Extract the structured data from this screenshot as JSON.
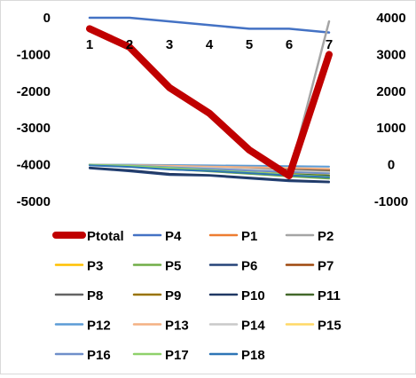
{
  "chart_data": {
    "type": "line",
    "x": [
      "1",
      "2",
      "3",
      "4",
      "5",
      "6",
      "7"
    ],
    "y_left_lim": [
      -5000,
      0
    ],
    "y_left_ticks": [
      "0",
      "-1000",
      "-2000",
      "-3000",
      "-4000",
      "-5000"
    ],
    "y_right_lim": [
      -1000,
      4000
    ],
    "y_right_ticks": [
      "4000",
      "3000",
      "2000",
      "1000",
      "0",
      "-1000"
    ],
    "grid": false,
    "legend_position": "bottom",
    "series": [
      {
        "name": "Ptotal",
        "axis": "left",
        "color": "#c00000",
        "width": 8,
        "values": [
          -300,
          -800,
          -1900,
          -2600,
          -3600,
          -4300,
          -1000
        ]
      },
      {
        "name": "P4",
        "axis": "left",
        "color": "#4472c4",
        "width": 2.5,
        "values": [
          0,
          0,
          -100,
          -200,
          -300,
          -300,
          -400
        ]
      },
      {
        "name": "P1",
        "axis": "right",
        "color": "#ed7d31",
        "width": 2,
        "values": [
          0,
          -20,
          -50,
          -80,
          -120,
          -180,
          -220
        ]
      },
      {
        "name": "P2",
        "axis": "right",
        "color": "#a5a5a5",
        "width": 2.5,
        "values": [
          0,
          -30,
          -80,
          -140,
          -200,
          -300,
          3900
        ]
      },
      {
        "name": "P3",
        "axis": "right",
        "color": "#ffc000",
        "width": 2,
        "values": [
          0,
          -40,
          -110,
          -160,
          -220,
          -280,
          -320
        ]
      },
      {
        "name": "P5",
        "axis": "right",
        "color": "#70ad47",
        "width": 2,
        "values": [
          0,
          -40,
          -120,
          -180,
          -250,
          -320,
          -380
        ]
      },
      {
        "name": "P6",
        "axis": "right",
        "color": "#264478",
        "width": 2,
        "values": [
          -100,
          -180,
          -280,
          -300,
          -380,
          -450,
          -480
        ]
      },
      {
        "name": "P7",
        "axis": "right",
        "color": "#9e480e",
        "width": 2,
        "values": [
          0,
          -20,
          -40,
          -60,
          -90,
          -110,
          -140
        ]
      },
      {
        "name": "P8",
        "axis": "right",
        "color": "#636363",
        "width": 2,
        "values": [
          0,
          -20,
          -50,
          -80,
          -110,
          -140,
          -170
        ]
      },
      {
        "name": "P9",
        "axis": "right",
        "color": "#997300",
        "width": 2,
        "values": [
          0,
          -30,
          -70,
          -100,
          -130,
          -170,
          -190
        ]
      },
      {
        "name": "P10",
        "axis": "right",
        "color": "#203864",
        "width": 2,
        "values": [
          -80,
          -150,
          -250,
          -280,
          -350,
          -420,
          -460
        ]
      },
      {
        "name": "P11",
        "axis": "right",
        "color": "#43682b",
        "width": 2,
        "values": [
          0,
          -30,
          -90,
          -130,
          -190,
          -250,
          -290
        ]
      },
      {
        "name": "P12",
        "axis": "right",
        "color": "#5b9bd5",
        "width": 2,
        "values": [
          0,
          0,
          -10,
          -20,
          -30,
          -40,
          -50
        ]
      },
      {
        "name": "P13",
        "axis": "right",
        "color": "#f4b183",
        "width": 2,
        "values": [
          0,
          -10,
          -30,
          -50,
          -70,
          -90,
          -110
        ]
      },
      {
        "name": "P14",
        "axis": "right",
        "color": "#c9c9c9",
        "width": 2,
        "values": [
          0,
          -20,
          -60,
          -90,
          -120,
          -160,
          -200
        ]
      },
      {
        "name": "P15",
        "axis": "right",
        "color": "#ffd966",
        "width": 2,
        "values": [
          0,
          -30,
          -80,
          -120,
          -170,
          -210,
          -250
        ]
      },
      {
        "name": "P16",
        "axis": "right",
        "color": "#6f8fc9",
        "width": 2,
        "values": [
          0,
          -20,
          -70,
          -110,
          -160,
          -200,
          -240
        ]
      },
      {
        "name": "P17",
        "axis": "right",
        "color": "#8fd16b",
        "width": 2,
        "values": [
          0,
          -30,
          -90,
          -150,
          -210,
          -270,
          -330
        ]
      },
      {
        "name": "P18",
        "axis": "right",
        "color": "#2e75b6",
        "width": 2,
        "values": [
          -20,
          -60,
          -130,
          -170,
          -230,
          -290,
          -340
        ]
      }
    ]
  }
}
